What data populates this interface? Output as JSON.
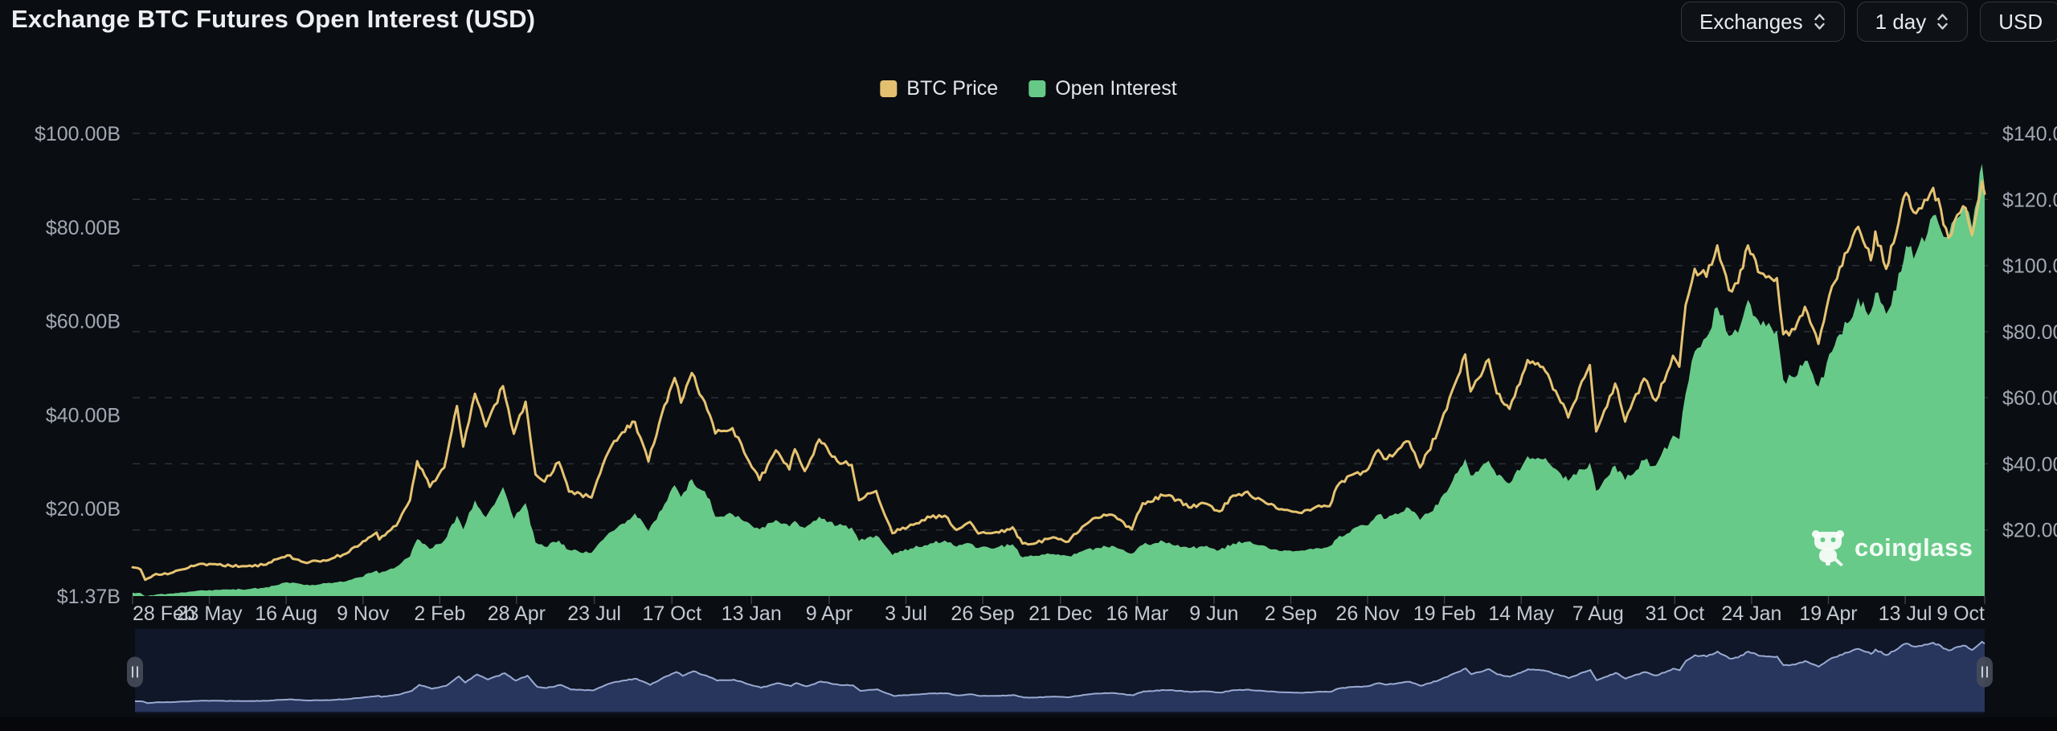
{
  "header": {
    "title": "Exchange BTC Futures Open Interest (USD)"
  },
  "controls": [
    {
      "key": "exchanges-dropdown",
      "label": "Exchanges",
      "has_chevron": true
    },
    {
      "key": "interval-dropdown",
      "label": "1 day",
      "has_chevron": true
    },
    {
      "key": "currency-dropdown",
      "label": "USD",
      "has_chevron": false
    }
  ],
  "watermark": {
    "text": "coinglass"
  },
  "colors": {
    "background": "#0A0D12",
    "price_line": "#E6C372",
    "oi_area": "#68CA88",
    "grid_line": "#2E3238",
    "axis_text": "#A2A8B3",
    "x_axis_text": "#C3C9D2",
    "navigator_bg": "#0F1728",
    "navigator_fill": "#2B3A63",
    "navigator_line": "#9AA9D0"
  },
  "chart_data": {
    "type": "line",
    "title": "Exchange BTC Futures Open Interest (USD)",
    "legend": [
      {
        "label": "BTC Price",
        "color": "#E2C06F"
      },
      {
        "label": "Open Interest",
        "color": "#66C987"
      }
    ],
    "legend_position": "top-center",
    "grid": {
      "horizontal": true,
      "dashed": true,
      "vertical": false
    },
    "left_axis": {
      "name": "Open Interest (USD, billions)",
      "labels": [
        "$100.00B",
        "$80.00B",
        "$60.00B",
        "$40.00B",
        "$20.00B",
        "$1.37B"
      ],
      "values": [
        100,
        80,
        60,
        40,
        20,
        1.37
      ],
      "min": 1.37,
      "max": 100
    },
    "right_axis": {
      "name": "BTC Price (USD, thousands)",
      "labels": [
        "$140.00K",
        "$120.00K",
        "$100.00K",
        "$80.00K",
        "$60.00K",
        "$40.00K",
        "$20.00K"
      ],
      "values": [
        140,
        120,
        100,
        80,
        60,
        40,
        20
      ],
      "min": 0,
      "max": 140
    },
    "x_axis": {
      "labels": [
        "28 Feb",
        "23 May",
        "16 Aug",
        "9 Nov",
        "2 Feb",
        "28 Apr",
        "23 Jul",
        "17 Oct",
        "13 Jan",
        "9 Apr",
        "3 Jul",
        "26 Sep",
        "21 Dec",
        "16 Mar",
        "9 Jun",
        "2 Sep",
        "26 Nov",
        "19 Feb",
        "14 May",
        "7 Aug",
        "31 Oct",
        "24 Jan",
        "19 Apr",
        "13 Jul",
        "9 Oct"
      ],
      "tick_dates": [
        "2020-02-28",
        "2020-05-23",
        "2020-08-16",
        "2020-11-09",
        "2021-02-02",
        "2021-04-28",
        "2021-07-23",
        "2021-10-17",
        "2022-01-13",
        "2022-04-09",
        "2022-07-03",
        "2022-09-26",
        "2022-12-21",
        "2023-03-16",
        "2023-06-09",
        "2023-09-02",
        "2023-11-26",
        "2024-02-19",
        "2024-05-14",
        "2024-08-07",
        "2024-10-31",
        "2025-01-24",
        "2025-04-19",
        "2025-07-13",
        "2025-10-09"
      ]
    },
    "series": [
      {
        "name": "BTC Price",
        "type": "line",
        "axis": "right",
        "color": "#E6C372",
        "point_field": 1
      },
      {
        "name": "Open Interest",
        "type": "area",
        "axis": "left",
        "color": "#68CA88",
        "point_field": 2
      }
    ],
    "points_format": [
      "date",
      "btc_price_thousand_usd",
      "open_interest_billion_usd"
    ],
    "points": [
      [
        "2020-02-28",
        8.7,
        2.1
      ],
      [
        "2020-03-08",
        8.0,
        2.0
      ],
      [
        "2020-03-13",
        4.9,
        1.37
      ],
      [
        "2020-03-25",
        6.7,
        1.7
      ],
      [
        "2020-04-10",
        6.9,
        1.9
      ],
      [
        "2020-04-30",
        8.6,
        2.3
      ],
      [
        "2020-05-14",
        9.8,
        2.6
      ],
      [
        "2020-06-01",
        9.5,
        2.7
      ],
      [
        "2020-06-27",
        9.0,
        2.8
      ],
      [
        "2020-07-22",
        9.4,
        3.1
      ],
      [
        "2020-08-17",
        12.3,
        4.3
      ],
      [
        "2020-09-05",
        10.2,
        3.7
      ],
      [
        "2020-09-23",
        10.4,
        3.9
      ],
      [
        "2020-10-21",
        12.8,
        4.5
      ],
      [
        "2020-11-06",
        15.6,
        5.4
      ],
      [
        "2020-11-24",
        19.2,
        6.8
      ],
      [
        "2020-11-27",
        17.1,
        6.2
      ],
      [
        "2020-12-16",
        21.3,
        7.6
      ],
      [
        "2020-12-31",
        29.0,
        9.8
      ],
      [
        "2021-01-08",
        40.8,
        13.5
      ],
      [
        "2021-01-22",
        33.0,
        11.4
      ],
      [
        "2021-02-07",
        38.9,
        13.2
      ],
      [
        "2021-02-21",
        57.5,
        18.5
      ],
      [
        "2021-02-28",
        45.2,
        15.6
      ],
      [
        "2021-03-13",
        61.2,
        21.8
      ],
      [
        "2021-03-25",
        51.3,
        18.2
      ],
      [
        "2021-04-13",
        63.5,
        24.6
      ],
      [
        "2021-04-25",
        49.1,
        17.8
      ],
      [
        "2021-05-08",
        58.8,
        21.2
      ],
      [
        "2021-05-19",
        36.8,
        12.8
      ],
      [
        "2021-05-29",
        34.6,
        11.9
      ],
      [
        "2021-06-14",
        40.5,
        13.2
      ],
      [
        "2021-06-25",
        31.6,
        11.2
      ],
      [
        "2021-07-20",
        29.8,
        10.6
      ],
      [
        "2021-08-08",
        43.8,
        14.8
      ],
      [
        "2021-08-23",
        49.5,
        16.8
      ],
      [
        "2021-09-06",
        52.7,
        19.0
      ],
      [
        "2021-09-21",
        40.7,
        15.2
      ],
      [
        "2021-10-06",
        55.3,
        19.8
      ],
      [
        "2021-10-20",
        66.0,
        25.0
      ],
      [
        "2021-10-27",
        58.5,
        22.5
      ],
      [
        "2021-11-08",
        67.5,
        26.3
      ],
      [
        "2021-11-28",
        54.7,
        22.0
      ],
      [
        "2021-12-04",
        49.2,
        18.3
      ],
      [
        "2021-12-23",
        50.8,
        18.8
      ],
      [
        "2022-01-05",
        43.4,
        17.3
      ],
      [
        "2022-01-22",
        35.1,
        15.6
      ],
      [
        "2022-02-09",
        44.1,
        17.6
      ],
      [
        "2022-02-24",
        38.3,
        16.2
      ],
      [
        "2022-03-02",
        44.4,
        17.4
      ],
      [
        "2022-03-13",
        37.8,
        15.9
      ],
      [
        "2022-03-29",
        47.4,
        18.3
      ],
      [
        "2022-04-18",
        40.8,
        16.4
      ],
      [
        "2022-05-04",
        39.7,
        16.0
      ],
      [
        "2022-05-12",
        29.0,
        13.1
      ],
      [
        "2022-05-31",
        31.8,
        14.3
      ],
      [
        "2022-06-13",
        22.5,
        11.4
      ],
      [
        "2022-06-18",
        19.0,
        10.1
      ],
      [
        "2022-07-08",
        21.6,
        11.5
      ],
      [
        "2022-07-30",
        23.8,
        12.6
      ],
      [
        "2022-08-15",
        24.3,
        13.2
      ],
      [
        "2022-08-28",
        20.0,
        11.9
      ],
      [
        "2022-09-12",
        22.4,
        12.6
      ],
      [
        "2022-09-21",
        18.9,
        11.6
      ],
      [
        "2022-10-14",
        19.2,
        11.9
      ],
      [
        "2022-10-29",
        20.8,
        12.4
      ],
      [
        "2022-11-09",
        15.9,
        9.6
      ],
      [
        "2022-11-21",
        15.8,
        9.9
      ],
      [
        "2022-12-13",
        17.8,
        10.3
      ],
      [
        "2022-12-30",
        16.5,
        9.9
      ],
      [
        "2023-01-14",
        20.9,
        10.9
      ],
      [
        "2023-01-29",
        23.7,
        11.6
      ],
      [
        "2023-02-16",
        24.6,
        12.1
      ],
      [
        "2023-03-10",
        20.2,
        10.4
      ],
      [
        "2023-03-22",
        28.1,
        12.3
      ],
      [
        "2023-04-14",
        30.4,
        13.0
      ],
      [
        "2023-04-30",
        29.2,
        12.3
      ],
      [
        "2023-05-12",
        26.8,
        11.6
      ],
      [
        "2023-05-29",
        28.1,
        11.9
      ],
      [
        "2023-06-15",
        25.6,
        11.2
      ],
      [
        "2023-06-30",
        30.4,
        12.6
      ],
      [
        "2023-07-13",
        31.3,
        12.9
      ],
      [
        "2023-07-31",
        29.2,
        12.2
      ],
      [
        "2023-08-17",
        26.6,
        11.3
      ],
      [
        "2023-09-01",
        25.8,
        11.1
      ],
      [
        "2023-09-11",
        25.2,
        11.0
      ],
      [
        "2023-09-30",
        27.0,
        11.6
      ],
      [
        "2023-10-15",
        27.2,
        12.0
      ],
      [
        "2023-10-23",
        33.1,
        13.6
      ],
      [
        "2023-11-09",
        36.7,
        15.6
      ],
      [
        "2023-11-24",
        37.8,
        16.4
      ],
      [
        "2023-12-08",
        44.2,
        18.8
      ],
      [
        "2023-12-17",
        41.4,
        17.9
      ],
      [
        "2024-01-02",
        45.0,
        19.2
      ],
      [
        "2024-01-11",
        46.7,
        20.1
      ],
      [
        "2024-01-23",
        38.9,
        17.6
      ],
      [
        "2024-02-12",
        49.9,
        20.8
      ],
      [
        "2024-02-28",
        62.4,
        25.9
      ],
      [
        "2024-03-13",
        73.1,
        30.6
      ],
      [
        "2024-03-19",
        61.9,
        27.1
      ],
      [
        "2024-04-08",
        71.6,
        30.2
      ],
      [
        "2024-04-17",
        61.3,
        27.0
      ],
      [
        "2024-05-01",
        56.6,
        25.4
      ],
      [
        "2024-05-21",
        71.4,
        31.2
      ],
      [
        "2024-06-07",
        69.3,
        30.5
      ],
      [
        "2024-06-24",
        60.3,
        28.0
      ],
      [
        "2024-07-05",
        54.0,
        25.9
      ],
      [
        "2024-07-29",
        69.9,
        29.8
      ],
      [
        "2024-08-05",
        49.8,
        23.8
      ],
      [
        "2024-08-26",
        64.3,
        29.2
      ],
      [
        "2024-09-06",
        52.8,
        26.1
      ],
      [
        "2024-09-27",
        65.8,
        30.3
      ],
      [
        "2024-10-10",
        59.1,
        29.2
      ],
      [
        "2024-10-29",
        72.7,
        35.6
      ],
      [
        "2024-11-05",
        69.4,
        34.8
      ],
      [
        "2024-11-12",
        88.0,
        44.5
      ],
      [
        "2024-11-22",
        99.0,
        53.5
      ],
      [
        "2024-12-05",
        96.6,
        56.5
      ],
      [
        "2024-12-17",
        106.1,
        63.0
      ],
      [
        "2024-12-30",
        92.6,
        56.8
      ],
      [
        "2025-01-09",
        94.7,
        57.5
      ],
      [
        "2025-01-20",
        106.1,
        64.5
      ],
      [
        "2025-02-03",
        97.7,
        59.0
      ],
      [
        "2025-02-21",
        96.2,
        58.0
      ],
      [
        "2025-02-28",
        79.2,
        47.5
      ],
      [
        "2025-03-13",
        80.7,
        48.0
      ],
      [
        "2025-03-24",
        87.5,
        51.5
      ],
      [
        "2025-04-08",
        76.3,
        46.0
      ],
      [
        "2025-04-23",
        93.7,
        53.5
      ],
      [
        "2025-05-10",
        104.1,
        59.5
      ],
      [
        "2025-05-22",
        111.7,
        65.0
      ],
      [
        "2025-06-05",
        101.6,
        62.0
      ],
      [
        "2025-06-10",
        110.3,
        66.0
      ],
      [
        "2025-06-22",
        99.0,
        61.5
      ],
      [
        "2025-07-03",
        109.6,
        66.5
      ],
      [
        "2025-07-14",
        122.0,
        76.0
      ],
      [
        "2025-07-25",
        115.8,
        74.5
      ],
      [
        "2025-08-13",
        123.5,
        82.5
      ],
      [
        "2025-08-30",
        108.4,
        78.0
      ],
      [
        "2025-09-12",
        116.0,
        82.5
      ],
      [
        "2025-09-18",
        117.4,
        84.0
      ],
      [
        "2025-09-25",
        109.2,
        80.0
      ],
      [
        "2025-10-01",
        117.5,
        86.0
      ],
      [
        "2025-10-06",
        125.5,
        93.5
      ],
      [
        "2025-10-09",
        121.7,
        88.5
      ]
    ],
    "navigator": {
      "shows_series": "BTC Price",
      "window": "full-range"
    }
  }
}
